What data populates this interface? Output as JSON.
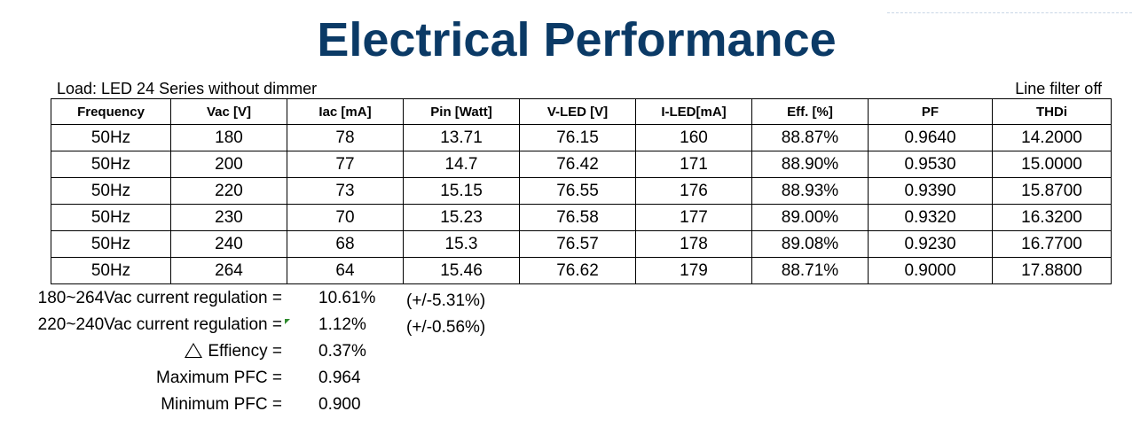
{
  "title": "Electrical Performance",
  "load_label": "Load: LED 24 Series without dimmer",
  "filter_label": "Line filter off",
  "table": {
    "headers": [
      "Frequency",
      "Vac [V]",
      "Iac [mA]",
      "Pin [Watt]",
      "V-LED [V]",
      "I-LED[mA]",
      "Eff. [%]",
      "PF",
      "THDi"
    ],
    "rows": [
      [
        "50Hz",
        "180",
        "78",
        "13.71",
        "76.15",
        "160",
        "88.87%",
        "0.9640",
        "14.2000"
      ],
      [
        "50Hz",
        "200",
        "77",
        "14.7",
        "76.42",
        "171",
        "88.90%",
        "0.9530",
        "15.0000"
      ],
      [
        "50Hz",
        "220",
        "73",
        "15.15",
        "76.55",
        "176",
        "88.93%",
        "0.9390",
        "15.8700"
      ],
      [
        "50Hz",
        "230",
        "70",
        "15.23",
        "76.58",
        "177",
        "89.00%",
        "0.9320",
        "16.3200"
      ],
      [
        "50Hz",
        "240",
        "68",
        "15.3",
        "76.57",
        "178",
        "89.08%",
        "0.9230",
        "16.7700"
      ],
      [
        "50Hz",
        "264",
        "64",
        "15.46",
        "76.62",
        "179",
        "88.71%",
        "0.9000",
        "17.8800"
      ]
    ]
  },
  "summary": [
    {
      "label": "180~264Vac current regulation =",
      "value": "10.61%",
      "note": "(+/-5.31%)"
    },
    {
      "label": "220~240Vac current regulation =",
      "value": "1.12%",
      "note": "(+/-0.56%)"
    },
    {
      "label": "Effiency =",
      "value": "0.37%",
      "note": ""
    },
    {
      "label": "Maximum PFC =",
      "value": "0.964",
      "note": ""
    },
    {
      "label": "Minimum PFC =",
      "value": "0.900",
      "note": ""
    }
  ],
  "icons": {
    "delta": "triangle-icon",
    "cell_comment": "comment-marker-icon"
  },
  "colors": {
    "title": "#0b3a66",
    "comment_marker": "#2e8b2e"
  }
}
